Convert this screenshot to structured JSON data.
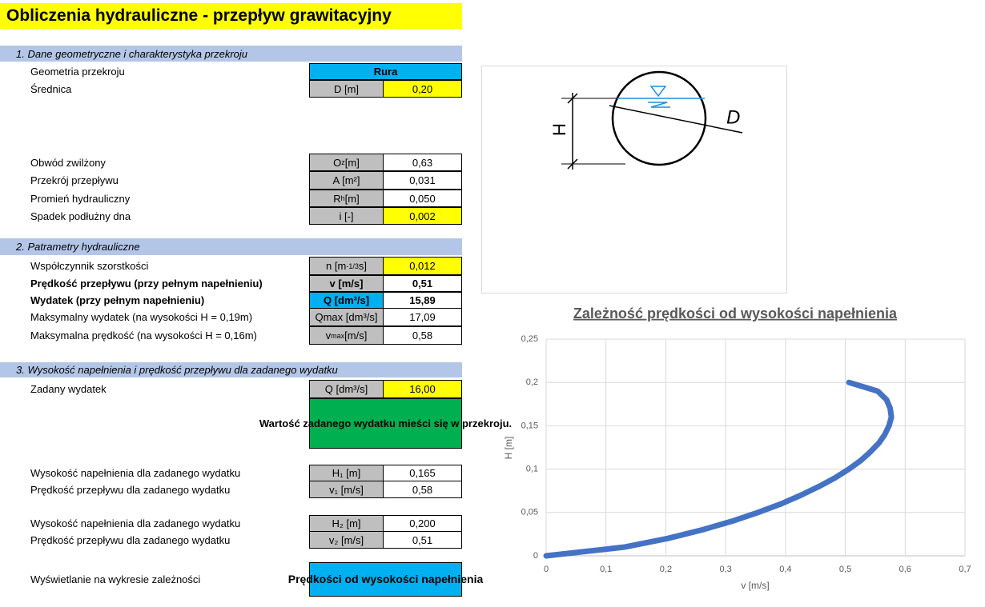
{
  "header": {
    "title": "Obliczenia hydrauliczne - przepływ grawitacyjny"
  },
  "sections": [
    {
      "title": "1. Dane geometryczne i charakterystyka przekroju",
      "rows": [
        {
          "label": "Geometria przekroju",
          "value": "Rura"
        },
        {
          "label": "Średnica",
          "unit": "D [m]",
          "value": "0,20"
        },
        {
          "label": "Obwód zwilżony",
          "unit": {
            "text": "O",
            "sub": "z",
            "after": " [m]"
          },
          "value": "0,63"
        },
        {
          "label": "Przekrój przepływu",
          "unit": "A [m²]",
          "value": "0,031"
        },
        {
          "label": "Promień hydrauliczny",
          "unit": {
            "text": "R",
            "sub": "h",
            "after": " [m]"
          },
          "value": "0,050"
        },
        {
          "label": "Spadek podłużny dna",
          "unit": "i [-]",
          "value": "0,002"
        }
      ]
    },
    {
      "title": "2. Patrametry hydrauliczne",
      "rows": [
        {
          "label": "Współczynnik szorstkości",
          "unit": {
            "text": "n [m",
            "sup": "-1/3",
            "after": "s]"
          },
          "value": "0,012"
        },
        {
          "label": "Prędkość przepływu (przy pełnym napełnieniu)",
          "unit": "v [m/s]",
          "value": "0,51"
        },
        {
          "label": "Wydatek (przy pełnym napełnieniu)",
          "unit": "Q [dm³/s]",
          "value": "15,89"
        },
        {
          "label": "Maksymalny wydatek (na wysokości H = 0,19m)",
          "unit": "Qmax [dm³/s]",
          "value": "17,09"
        },
        {
          "label": "Maksymalna prędkość (na wysokości H = 0,16m)",
          "unit": {
            "text": "v",
            "sub": "max",
            "after": " [m/s]"
          },
          "value": "0,58"
        }
      ]
    },
    {
      "title": "3. Wysokość napełnienia i prędkość przepływu dla zadanego wydatku",
      "rows": [
        {
          "label": "Zadany wydatek",
          "unit": "Q [dm³/s]",
          "value": "16,00"
        },
        {
          "message": "Wartość zadanego wydatku mieści się w przekroju."
        },
        {
          "label": "Wysokość napełnienia dla zadanego wydatku",
          "unit": "H₁ [m]",
          "value": "0,165"
        },
        {
          "label": "Prędkość przepływu dla zadanego wydatku",
          "unit": "v₁ [m/s]",
          "value": "0,58"
        },
        {
          "label": "Wysokość napełnienia dla zadanego wydatku",
          "unit": "H₂ [m]",
          "value": "0,200"
        },
        {
          "label": "Prędkość przepływu dla zadanego wydatku",
          "unit": "v₂ [m/s]",
          "value": "0,51"
        },
        {
          "label": "Wyświetlanie na wykresie zależności",
          "button": "Prędkości od wysokości napełnienia"
        }
      ]
    }
  ],
  "diagram": {
    "labels": [
      "H",
      "D"
    ]
  },
  "chart_data": {
    "type": "line",
    "title": "Zależność prędkości od wysokości napełnienia",
    "xlabel": "v [m/s]",
    "ylabel": "H [m]",
    "color": "#4472c4",
    "grid": true,
    "x": [
      0,
      0.13,
      0.203,
      0.261,
      0.311,
      0.354,
      0.393,
      0.426,
      0.456,
      0.483,
      0.506,
      0.526,
      0.542,
      0.556,
      0.566,
      0.573,
      0.577,
      0.575,
      0.569,
      0.554,
      0.506
    ],
    "values": [
      0,
      0.01,
      0.02,
      0.03,
      0.04,
      0.05,
      0.06,
      0.07,
      0.08,
      0.09,
      0.1,
      0.11,
      0.12,
      0.13,
      0.14,
      0.15,
      0.16,
      0.17,
      0.18,
      0.19,
      0.2
    ],
    "xlim": [
      0,
      0.7
    ],
    "xticks": [
      0,
      {
        "value": 0.1,
        "label": "0,1"
      },
      {
        "value": 0.2,
        "label": "0,2"
      },
      {
        "value": 0.3,
        "label": "0,3"
      },
      {
        "value": 0.4,
        "label": "0,4"
      },
      {
        "value": 0.5,
        "label": "0,5"
      },
      {
        "value": 0.6,
        "label": "0,6"
      },
      {
        "value": 0.7,
        "label": "0,7"
      }
    ],
    "ylim": [
      0,
      0.25
    ],
    "yticks": [
      0,
      {
        "value": 0.05,
        "label": "0,05"
      },
      {
        "value": 0.1,
        "label": "0,1"
      },
      {
        "value": 0.15,
        "label": "0,15"
      },
      {
        "value": 0.2,
        "label": "0,2"
      },
      {
        "value": 0.25,
        "label": "0,25"
      }
    ]
  }
}
